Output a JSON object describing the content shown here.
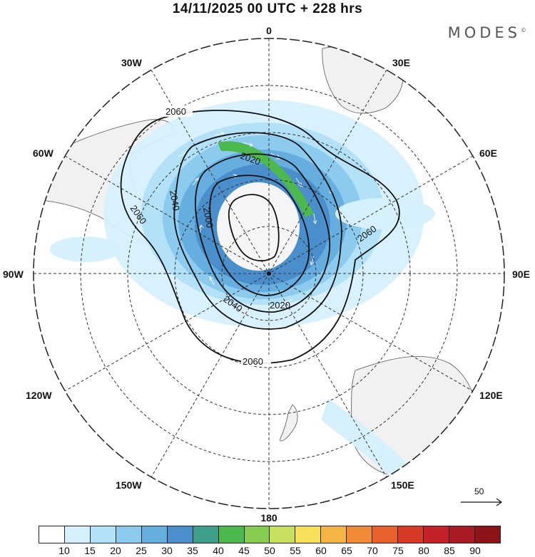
{
  "header": {
    "title": "14/11/2025  00 UTC  + 228 hrs",
    "brand": "MODES",
    "brand_mark": "©"
  },
  "map": {
    "projection": "south-polar-stereographic",
    "longitude_labels": {
      "top": "0",
      "bottom": "180",
      "left": "90W",
      "right": "90E",
      "upper_left": "30W",
      "upper_right": "30E",
      "mid_left_upper": "60W",
      "mid_right_upper": "60E",
      "mid_left_lower": "120W",
      "mid_right_lower": "120E",
      "lower_left": "150W",
      "lower_right": "150E"
    },
    "contour_labels": [
      "2060",
      "2060",
      "2060",
      "2060",
      "2040",
      "2040",
      "2020",
      "2020",
      "2000"
    ],
    "reference_vector": {
      "label": "50"
    }
  },
  "colorbar": {
    "colors": [
      "#ffffff",
      "#d6f0fc",
      "#b3e2f8",
      "#8ccbee",
      "#66ade0",
      "#4a8fcc",
      "#3ea08c",
      "#4db84e",
      "#86cc50",
      "#c8e060",
      "#f6e05a",
      "#f5b446",
      "#f08a36",
      "#e8602c",
      "#d83a28",
      "#c42228",
      "#a81a24",
      "#8c1418"
    ],
    "ticks": [
      "10",
      "15",
      "20",
      "25",
      "30",
      "35",
      "40",
      "45",
      "50",
      "55",
      "60",
      "65",
      "70",
      "75",
      "80",
      "85",
      "90"
    ]
  }
}
